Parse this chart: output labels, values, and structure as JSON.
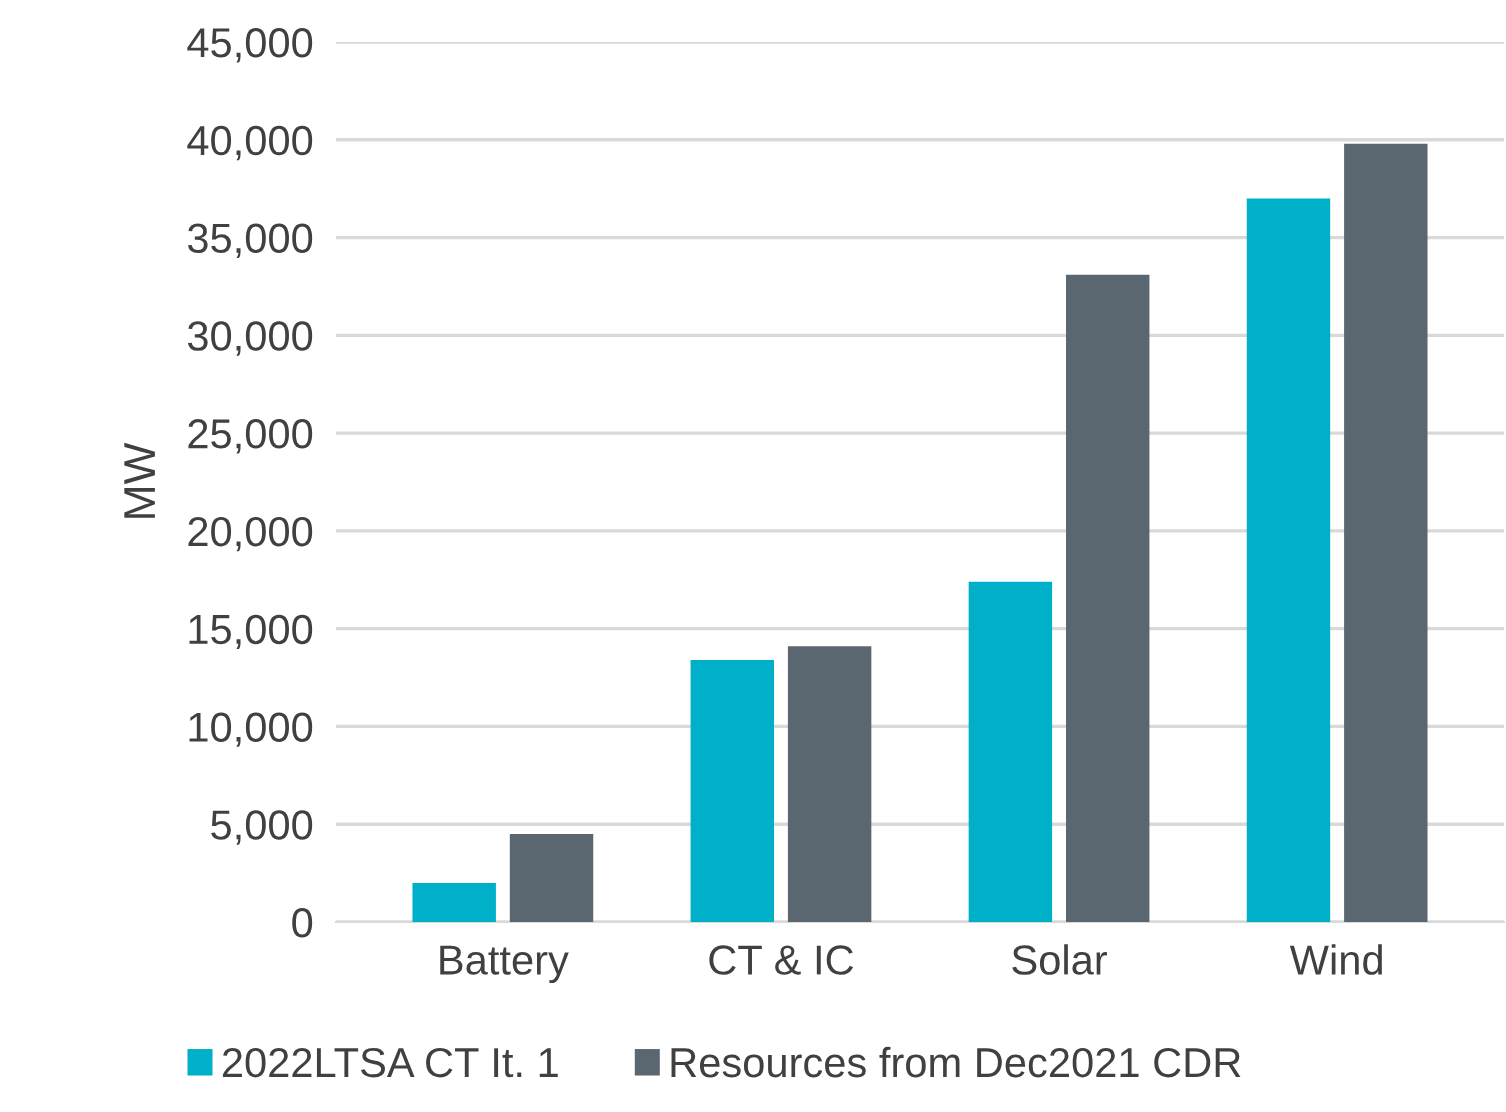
{
  "chart_data": {
    "type": "bar",
    "ylabel": "MW",
    "categories": [
      "Battery",
      "CT & IC",
      "Solar",
      "Wind"
    ],
    "series": [
      {
        "name": "2022LTSA CT It. 1",
        "color": "#00afc8",
        "values": [
          2000,
          13400,
          17400,
          37000
        ]
      },
      {
        "name": "Resources from Dec2021 CDR",
        "color": "#5a6670",
        "values": [
          4500,
          14100,
          33100,
          39800
        ]
      }
    ],
    "ylim": [
      0,
      45000
    ],
    "yticks": [
      {
        "value": 0,
        "label": "0"
      },
      {
        "value": 5000,
        "label": "5,000"
      },
      {
        "value": 10000,
        "label": "10,000"
      },
      {
        "value": 15000,
        "label": "15,000"
      },
      {
        "value": 20000,
        "label": "20,000"
      },
      {
        "value": 25000,
        "label": "25,000"
      },
      {
        "value": 30000,
        "label": "30,000"
      },
      {
        "value": 35000,
        "label": "35,000"
      },
      {
        "value": 40000,
        "label": "40,000"
      },
      {
        "value": 45000,
        "label": "45,000"
      }
    ],
    "grid": "y",
    "legend": "bottom left"
  }
}
